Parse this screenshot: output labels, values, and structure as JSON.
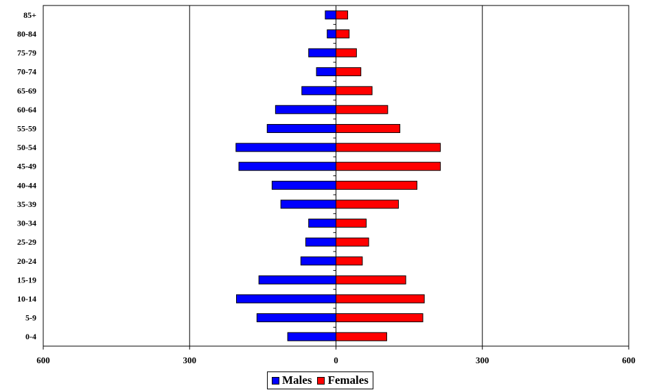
{
  "chart_data": {
    "type": "bar",
    "orientation": "horizontal",
    "categories": [
      "85+",
      "80-84",
      "75-79",
      "70-74",
      "65-69",
      "60-64",
      "55-59",
      "50-54",
      "45-49",
      "40-44",
      "35-39",
      "30-34",
      "25-29",
      "20-24",
      "15-19",
      "10-14",
      "5-9",
      "0-4"
    ],
    "series": [
      {
        "name": "Males",
        "color": "#0000ff",
        "values": [
          -22,
          -18,
          -56,
          -40,
          -70,
          -124,
          -141,
          -205,
          -199,
          -131,
          -113,
          -56,
          -62,
          -72,
          -158,
          -204,
          -162,
          -99
        ]
      },
      {
        "name": "Females",
        "color": "#ff0000",
        "values": [
          24,
          27,
          42,
          51,
          74,
          106,
          131,
          214,
          214,
          166,
          128,
          62,
          67,
          54,
          143,
          181,
          178,
          104
        ]
      }
    ],
    "x_ticks": [
      "600",
      "300",
      "0",
      "300",
      "600"
    ],
    "xlim": [
      -600,
      600
    ],
    "grid": "vertical",
    "legend_position": "bottom-center"
  }
}
